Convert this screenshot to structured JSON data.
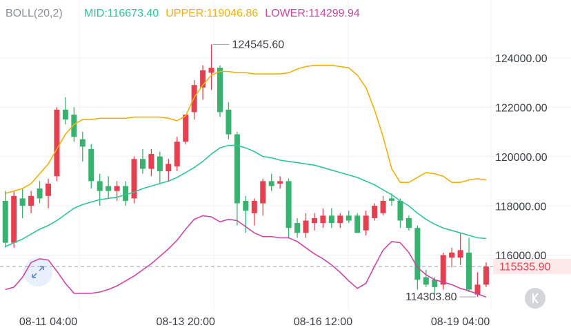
{
  "chart_data": {
    "type": "candlestick",
    "legend": [
      "BOLL(20,2)"
    ],
    "categories": [
      null,
      null,
      null,
      null,
      null,
      "08-11 04:00",
      null,
      null,
      null,
      null,
      null,
      null,
      null,
      null,
      null,
      null,
      null,
      null,
      null,
      null,
      null,
      "08-13 20:00",
      null,
      null,
      null,
      null,
      null,
      null,
      null,
      null,
      null,
      null,
      null,
      null,
      null,
      null,
      null,
      "08-16 12:00",
      null,
      null,
      null,
      null,
      null,
      null,
      null,
      null,
      null,
      null,
      null,
      null,
      null,
      null,
      null,
      "08-19 04:00",
      null,
      null,
      null
    ],
    "open": [
      118200,
      116500,
      118300,
      118000,
      118700,
      118400,
      119200,
      121900,
      121700,
      120700,
      120300,
      119000,
      118800,
      118600,
      118800,
      118300,
      119900,
      119500,
      120000,
      119400,
      119600,
      120600,
      121800,
      122800,
      123400,
      123600,
      121900,
      120900,
      118200,
      117700,
      118100,
      119000,
      118900,
      119000,
      117300,
      116900,
      117300,
      117300,
      117600,
      117300,
      117600,
      117600,
      117000,
      117500,
      117700,
      118300,
      118200,
      117500,
      117100,
      115100,
      115000,
      114800,
      115900,
      115900,
      116100,
      114400,
      114800
    ],
    "high": [
      118600,
      118600,
      118700,
      118600,
      119000,
      119100,
      122000,
      122400,
      122000,
      121000,
      120500,
      119300,
      119200,
      119000,
      119000,
      120000,
      120300,
      120300,
      120200,
      119900,
      120800,
      121700,
      123100,
      123700,
      124545.6,
      123700,
      122200,
      121000,
      118400,
      118300,
      119100,
      119300,
      119200,
      119100,
      117500,
      117700,
      117700,
      117900,
      117900,
      117700,
      117800,
      117700,
      117800,
      118100,
      118400,
      118500,
      118300,
      117600,
      117200,
      115400,
      115100,
      116100,
      116300,
      116900,
      116700,
      115300,
      115700
    ],
    "low": [
      116300,
      116300,
      117500,
      117700,
      118100,
      117900,
      119000,
      121300,
      120600,
      119800,
      118700,
      118000,
      118300,
      118200,
      118000,
      118100,
      119300,
      119200,
      118900,
      119000,
      119400,
      120500,
      121500,
      122300,
      122700,
      121600,
      120700,
      117200,
      116900,
      117200,
      117600,
      118600,
      118700,
      116700,
      116700,
      116700,
      117000,
      117100,
      117100,
      117100,
      117300,
      116900,
      116800,
      117400,
      117600,
      118000,
      117100,
      117000,
      114600,
      114700,
      114400,
      114600,
      115500,
      115600,
      114500,
      114303.8,
      114700
    ],
    "close": [
      116500,
      118400,
      118000,
      118400,
      118300,
      118900,
      121900,
      121500,
      120800,
      120400,
      119000,
      118600,
      118600,
      118800,
      118200,
      119900,
      119500,
      120100,
      119400,
      119700,
      120600,
      121700,
      122900,
      123500,
      123600,
      121800,
      120900,
      118100,
      117800,
      118200,
      119000,
      118800,
      119000,
      117100,
      116900,
      117400,
      117500,
      117600,
      117300,
      117600,
      117400,
      116900,
      117600,
      118000,
      118200,
      118200,
      117400,
      117100,
      115000,
      114800,
      114700,
      116000,
      116100,
      116200,
      114600,
      114800,
      115535.9
    ],
    "up_color": "#e5404f",
    "down_color": "#37b36f",
    "series": [
      {
        "name": "MID:116673.40",
        "color": "#2fc39a",
        "values": [
          116350,
          116500,
          116650,
          116850,
          117050,
          117200,
          117400,
          117650,
          117900,
          118050,
          118150,
          118250,
          118300,
          118350,
          118450,
          118550,
          118700,
          118800,
          118900,
          119000,
          119150,
          119350,
          119550,
          119800,
          120100,
          120350,
          120450,
          120450,
          120350,
          120200,
          120000,
          119950,
          119850,
          119800,
          119750,
          119700,
          119650,
          119550,
          119450,
          119350,
          119250,
          119150,
          119000,
          118850,
          118650,
          118450,
          118200,
          118000,
          117700,
          117450,
          117250,
          117100,
          117000,
          116900,
          116800,
          116700,
          116673.4
        ]
      },
      {
        "name": "UPPER:119046.86",
        "color": "#eeb10a",
        "values": [
          118500,
          118600,
          118700,
          118900,
          119300,
          119700,
          120300,
          120900,
          121300,
          121500,
          121500,
          121550,
          121550,
          121550,
          121550,
          121600,
          121600,
          121600,
          121600,
          121550,
          121450,
          121650,
          122400,
          122900,
          123300,
          123450,
          123450,
          123400,
          123400,
          123350,
          123350,
          123350,
          123350,
          123400,
          123550,
          123650,
          123700,
          123700,
          123700,
          123650,
          123600,
          123300,
          122800,
          121900,
          120800,
          119500,
          118950,
          118950,
          119150,
          119350,
          119300,
          119200,
          118950,
          118950,
          119050,
          119100,
          119046.86
        ]
      },
      {
        "name": "LOWER:114299.94",
        "color": "#cc45a6",
        "values": [
          114600,
          114700,
          115100,
          115700,
          115850,
          115800,
          115350,
          114850,
          114450,
          114450,
          114450,
          114500,
          114600,
          114750,
          114950,
          115150,
          115400,
          115650,
          115950,
          116250,
          116600,
          117050,
          117450,
          117600,
          117550,
          117350,
          117450,
          117400,
          117150,
          116900,
          116750,
          116750,
          116700,
          116700,
          116550,
          116300,
          116050,
          115850,
          115600,
          115300,
          114950,
          114650,
          114850,
          115550,
          116200,
          116550,
          116500,
          116100,
          115500,
          115200,
          115000,
          114900,
          114800,
          114650,
          114550,
          114420,
          114299.94
        ]
      }
    ],
    "ylim": [
      113800,
      126350
    ],
    "yticks": [
      {
        "value": 116000,
        "label": "116000.00"
      },
      {
        "value": 118000,
        "label": "118000.00"
      },
      {
        "value": 120000,
        "label": "120000.00"
      },
      {
        "value": 122000,
        "label": "122000.00"
      },
      {
        "value": 124000,
        "label": "124000.00"
      }
    ],
    "grid": true,
    "high_marker": {
      "value": 124545.6,
      "label": "124545.60"
    },
    "low_marker": {
      "value": 114303.8,
      "label": "114303.80"
    },
    "price_line": {
      "value": 115535.9,
      "label": "115535.90"
    }
  }
}
